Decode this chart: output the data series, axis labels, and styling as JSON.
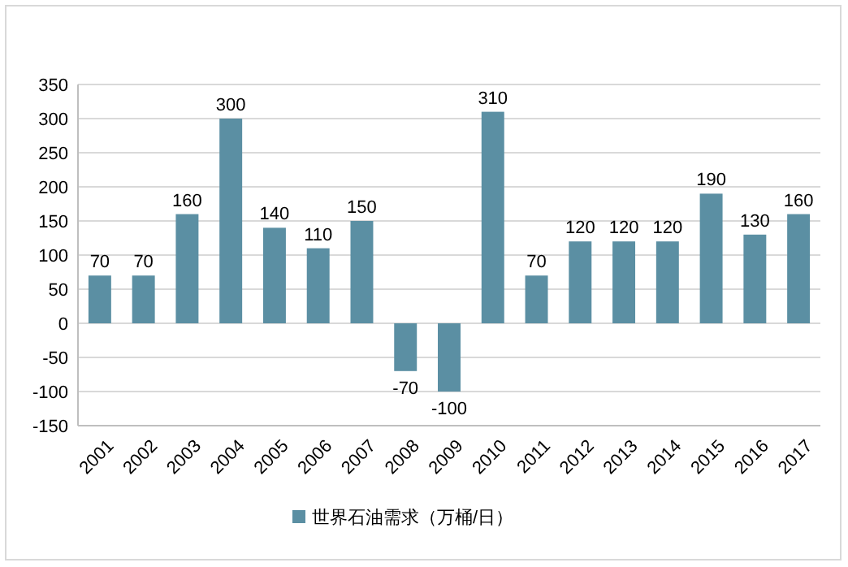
{
  "chart_data": {
    "type": "bar",
    "categories": [
      "2001",
      "2002",
      "2003",
      "2004",
      "2005",
      "2006",
      "2007",
      "2008",
      "2009",
      "2010",
      "2011",
      "2012",
      "2013",
      "2014",
      "2015",
      "2016",
      "2017"
    ],
    "series": [
      {
        "name": "世界石油需求（万桶/日）",
        "color": "#5b8fa3",
        "values": [
          70,
          70,
          160,
          300,
          140,
          110,
          150,
          -70,
          -100,
          310,
          70,
          120,
          120,
          120,
          190,
          130,
          160
        ]
      }
    ],
    "ylim": [
      -150,
      350
    ],
    "yticks": [
      -150,
      -100,
      -50,
      0,
      50,
      100,
      150,
      200,
      250,
      300,
      350
    ],
    "grid": "y",
    "data_labels": true,
    "legend": "bottom"
  }
}
